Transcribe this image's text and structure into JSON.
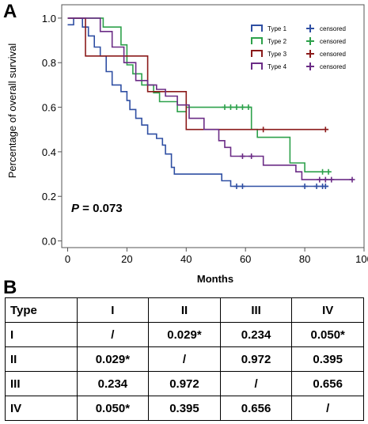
{
  "panel_a_label": "A",
  "panel_b_label": "B",
  "chart_data": {
    "type": "line",
    "step": true,
    "title": "",
    "xlabel": "Months",
    "ylabel": "Percentage of overall survival",
    "xlim": [
      -2,
      100
    ],
    "ylim": [
      -0.03,
      1.06
    ],
    "x_ticks": [
      0,
      20,
      40,
      60,
      80,
      100
    ],
    "y_ticks": [
      0.0,
      0.2,
      0.4,
      0.6,
      0.8,
      1.0
    ],
    "x_tick_labels": [
      "0",
      "20",
      "40",
      "60",
      "80",
      "100"
    ],
    "y_tick_labels": [
      "0.0",
      "0.2",
      "0.4",
      "0.6",
      "0.8",
      "1.0"
    ],
    "grid": false,
    "legend_position": "top-right",
    "annotation": {
      "prefix": "P",
      "text": " = 0.073"
    },
    "censored_label": "censored",
    "series": [
      {
        "name": "Type 1",
        "color": "#2f4fa3",
        "points": [
          [
            0,
            0.97
          ],
          [
            2,
            0.97
          ],
          [
            2,
            1.0
          ],
          [
            5,
            1.0
          ],
          [
            5,
            0.96
          ],
          [
            7,
            0.96
          ],
          [
            7,
            0.92
          ],
          [
            9,
            0.92
          ],
          [
            9,
            0.87
          ],
          [
            11,
            0.87
          ],
          [
            11,
            0.83
          ],
          [
            13,
            0.83
          ],
          [
            13,
            0.76
          ],
          [
            15,
            0.76
          ],
          [
            15,
            0.7
          ],
          [
            18,
            0.7
          ],
          [
            18,
            0.67
          ],
          [
            20,
            0.67
          ],
          [
            20,
            0.63
          ],
          [
            21,
            0.63
          ],
          [
            21,
            0.59
          ],
          [
            23,
            0.59
          ],
          [
            23,
            0.55
          ],
          [
            25,
            0.55
          ],
          [
            25,
            0.52
          ],
          [
            27,
            0.52
          ],
          [
            27,
            0.48
          ],
          [
            30,
            0.48
          ],
          [
            30,
            0.46
          ],
          [
            32,
            0.46
          ],
          [
            32,
            0.43
          ],
          [
            33,
            0.43
          ],
          [
            33,
            0.39
          ],
          [
            35,
            0.39
          ],
          [
            35,
            0.33
          ],
          [
            36,
            0.33
          ],
          [
            36,
            0.3
          ],
          [
            52,
            0.3
          ],
          [
            52,
            0.27
          ],
          [
            55,
            0.27
          ],
          [
            55,
            0.245
          ],
          [
            88,
            0.245
          ]
        ],
        "censored": [
          [
            57,
            0.245
          ],
          [
            59,
            0.245
          ],
          [
            80,
            0.245
          ],
          [
            84,
            0.245
          ],
          [
            86,
            0.245
          ],
          [
            87,
            0.245
          ]
        ]
      },
      {
        "name": "Type 2",
        "color": "#2da14b",
        "points": [
          [
            0,
            1.0
          ],
          [
            12,
            1.0
          ],
          [
            12,
            0.96
          ],
          [
            18,
            0.96
          ],
          [
            18,
            0.88
          ],
          [
            20,
            0.88
          ],
          [
            20,
            0.79
          ],
          [
            22,
            0.79
          ],
          [
            22,
            0.75
          ],
          [
            25,
            0.75
          ],
          [
            25,
            0.7
          ],
          [
            29,
            0.7
          ],
          [
            29,
            0.665
          ],
          [
            31,
            0.665
          ],
          [
            31,
            0.625
          ],
          [
            37,
            0.625
          ],
          [
            37,
            0.58
          ],
          [
            40,
            0.58
          ],
          [
            40,
            0.6
          ],
          [
            62,
            0.6
          ],
          [
            62,
            0.5
          ],
          [
            64,
            0.5
          ],
          [
            64,
            0.465
          ],
          [
            75,
            0.465
          ],
          [
            75,
            0.35
          ],
          [
            80,
            0.35
          ],
          [
            80,
            0.31
          ],
          [
            89,
            0.31
          ]
        ],
        "censored": [
          [
            53,
            0.6
          ],
          [
            55,
            0.6
          ],
          [
            57,
            0.6
          ],
          [
            59,
            0.6
          ],
          [
            61,
            0.6
          ],
          [
            86,
            0.31
          ],
          [
            88,
            0.31
          ]
        ]
      },
      {
        "name": "Type 3",
        "color": "#8b1a1a",
        "points": [
          [
            0,
            1.0
          ],
          [
            6,
            1.0
          ],
          [
            6,
            0.83
          ],
          [
            27,
            0.83
          ],
          [
            27,
            0.67
          ],
          [
            40,
            0.67
          ],
          [
            40,
            0.5
          ],
          [
            88,
            0.5
          ]
        ],
        "censored": [
          [
            66,
            0.5
          ],
          [
            87,
            0.5
          ]
        ]
      },
      {
        "name": "Type 4",
        "color": "#6b2c86",
        "points": [
          [
            0,
            1.0
          ],
          [
            11,
            1.0
          ],
          [
            11,
            0.94
          ],
          [
            15,
            0.94
          ],
          [
            15,
            0.87
          ],
          [
            19,
            0.87
          ],
          [
            19,
            0.8
          ],
          [
            23,
            0.8
          ],
          [
            23,
            0.72
          ],
          [
            27,
            0.72
          ],
          [
            27,
            0.7
          ],
          [
            30,
            0.7
          ],
          [
            30,
            0.68
          ],
          [
            33,
            0.68
          ],
          [
            33,
            0.65
          ],
          [
            37,
            0.65
          ],
          [
            37,
            0.61
          ],
          [
            41,
            0.61
          ],
          [
            41,
            0.55
          ],
          [
            46,
            0.55
          ],
          [
            46,
            0.5
          ],
          [
            51,
            0.5
          ],
          [
            51,
            0.45
          ],
          [
            53,
            0.45
          ],
          [
            53,
            0.42
          ],
          [
            55,
            0.42
          ],
          [
            55,
            0.38
          ],
          [
            66,
            0.38
          ],
          [
            66,
            0.34
          ],
          [
            77,
            0.34
          ],
          [
            77,
            0.31
          ],
          [
            79,
            0.31
          ],
          [
            79,
            0.275
          ],
          [
            96,
            0.275
          ]
        ],
        "censored": [
          [
            59,
            0.38
          ],
          [
            62,
            0.38
          ],
          [
            85,
            0.275
          ],
          [
            87,
            0.275
          ],
          [
            89,
            0.275
          ],
          [
            96,
            0.275
          ]
        ]
      }
    ]
  },
  "table": {
    "header": [
      "Type",
      "I",
      "II",
      "III",
      "IV"
    ],
    "rows": [
      [
        "I",
        "/",
        "0.029*",
        "0.234",
        "0.050*"
      ],
      [
        "II",
        "0.029*",
        "/",
        "0.972",
        "0.395"
      ],
      [
        "III",
        "0.234",
        "0.972",
        "/",
        "0.656"
      ],
      [
        "IV",
        "0.050*",
        "0.395",
        "0.656",
        "/"
      ]
    ]
  }
}
